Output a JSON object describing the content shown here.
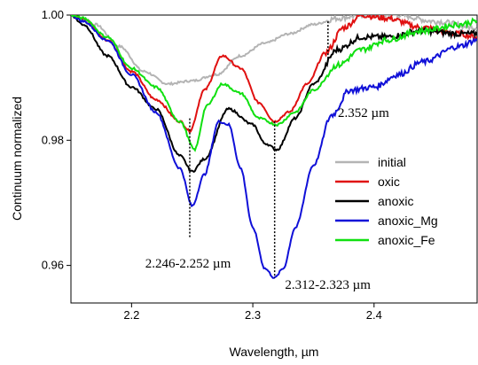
{
  "chart_data": {
    "type": "line",
    "xlabel": "Wavelength, µm",
    "ylabel": "Continuum normalized",
    "xlim": [
      2.15,
      2.485
    ],
    "ylim": [
      0.954,
      1.0
    ],
    "xticks": [
      {
        "value": 2.2,
        "label": "2.2"
      },
      {
        "value": 2.3,
        "label": "2.3"
      },
      {
        "value": 2.4,
        "label": "2.4"
      }
    ],
    "yticks": [
      {
        "value": 0.96,
        "label": "0.96"
      },
      {
        "value": 0.98,
        "label": "0.98"
      },
      {
        "value": 1.0,
        "label": "1.00"
      }
    ],
    "grid": false,
    "legend_position": "middle-right",
    "series": [
      {
        "name": "initial",
        "color": "#b4b4b4",
        "x": [
          2.15,
          2.17,
          2.19,
          2.21,
          2.23,
          2.25,
          2.27,
          2.29,
          2.31,
          2.33,
          2.35,
          2.37,
          2.39,
          2.42,
          2.45,
          2.485
        ],
        "y": [
          1.0,
          0.9985,
          0.995,
          0.991,
          0.989,
          0.9895,
          0.9905,
          0.9935,
          0.9955,
          0.997,
          0.9985,
          0.9995,
          1.0,
          1.0,
          0.999,
          0.998
        ]
      },
      {
        "name": "oxic",
        "color": "#e01010",
        "x": [
          2.15,
          2.16,
          2.18,
          2.2,
          2.22,
          2.24,
          2.248,
          2.26,
          2.275,
          2.29,
          2.305,
          2.318,
          2.33,
          2.345,
          2.36,
          2.375,
          2.39,
          2.41,
          2.44,
          2.47,
          2.485
        ],
        "y": [
          1.0,
          0.9995,
          0.996,
          0.991,
          0.9865,
          0.983,
          0.9815,
          0.988,
          0.9935,
          0.9915,
          0.986,
          0.983,
          0.9845,
          0.989,
          0.994,
          0.998,
          1.0,
          0.9995,
          0.998,
          0.997,
          0.9965
        ]
      },
      {
        "name": "anoxic",
        "color": "#000000",
        "x": [
          2.15,
          2.16,
          2.18,
          2.2,
          2.22,
          2.24,
          2.25,
          2.26,
          2.28,
          2.3,
          2.31,
          2.32,
          2.335,
          2.35,
          2.37,
          2.39,
          2.41,
          2.44,
          2.47,
          2.485
        ],
        "y": [
          1.0,
          0.9985,
          0.9935,
          0.9885,
          0.985,
          0.9775,
          0.975,
          0.977,
          0.985,
          0.9825,
          0.9795,
          0.9785,
          0.9835,
          0.989,
          0.9945,
          0.9965,
          0.9965,
          0.9975,
          0.997,
          0.997
        ]
      },
      {
        "name": "anoxic_Mg",
        "color": "#1010d8",
        "x": [
          2.15,
          2.16,
          2.18,
          2.2,
          2.22,
          2.24,
          2.25,
          2.26,
          2.272,
          2.28,
          2.29,
          2.3,
          2.31,
          2.318,
          2.325,
          2.335,
          2.35,
          2.365,
          2.38,
          2.4,
          2.42,
          2.44,
          2.47,
          2.485
        ],
        "y": [
          1.0,
          0.999,
          0.996,
          0.9905,
          0.9845,
          0.9755,
          0.9695,
          0.9745,
          0.983,
          0.9825,
          0.9755,
          0.966,
          0.9595,
          0.958,
          0.9595,
          0.966,
          0.976,
          0.984,
          0.988,
          0.9885,
          0.9905,
          0.9925,
          0.995,
          0.996
        ]
      },
      {
        "name": "anoxic_Fe",
        "color": "#10e010",
        "x": [
          2.15,
          2.16,
          2.18,
          2.2,
          2.22,
          2.24,
          2.252,
          2.262,
          2.275,
          2.29,
          2.305,
          2.32,
          2.335,
          2.35,
          2.37,
          2.39,
          2.41,
          2.44,
          2.47,
          2.485
        ],
        "y": [
          1.0,
          0.9995,
          0.9965,
          0.9915,
          0.9885,
          0.983,
          0.9785,
          0.9855,
          0.989,
          0.9875,
          0.9835,
          0.9825,
          0.9845,
          0.988,
          0.992,
          0.9945,
          0.996,
          0.9975,
          0.9985,
          0.999
        ]
      }
    ],
    "annotations": [
      {
        "text": "2.246-2.252 µm",
        "x": 2.248,
        "y_top": 0.9835,
        "y_bottom": 0.9645
      },
      {
        "text": "2.312-2.323 µm",
        "x": 2.318,
        "y_top": 0.983,
        "y_bottom": 0.958
      },
      {
        "text": "2.352 µm",
        "x": 2.362,
        "y_top": 0.999,
        "y_bottom": 0.9925
      }
    ]
  }
}
